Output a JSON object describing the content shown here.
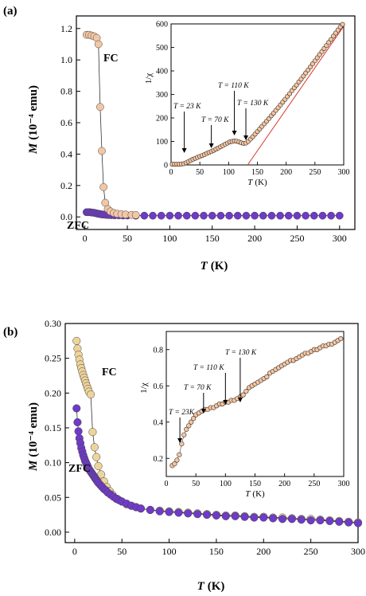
{
  "chart_data": [
    {
      "panel": "(a)",
      "type": "scatter",
      "xlabel_main": "T",
      "xlabel_unit": "(K)",
      "ylabel_main": "M",
      "ylabel_unit": "(10⁻⁴ emu)",
      "xlim": [
        -10,
        318
      ],
      "ylim": [
        -0.08,
        1.28
      ],
      "xticks": [
        0,
        50,
        100,
        150,
        200,
        250,
        300
      ],
      "yticks": [
        0.0,
        0.2,
        0.4,
        0.6,
        0.8,
        1.0,
        1.2
      ],
      "ytick_labels": [
        "0.0",
        "0.2",
        "0.4",
        "0.6",
        "0.8",
        "1.0",
        "1.2"
      ],
      "annotations": [
        "FC",
        "ZFC"
      ],
      "series": [
        {
          "name": "FC",
          "color": "#f2c7a5",
          "x": [
            2,
            5,
            8,
            11,
            14,
            16,
            18,
            20,
            22,
            24,
            27,
            30,
            34,
            38,
            43,
            48,
            55,
            60
          ],
          "y": [
            1.16,
            1.16,
            1.155,
            1.15,
            1.14,
            1.1,
            0.7,
            0.42,
            0.19,
            0.09,
            0.05,
            0.035,
            0.025,
            0.02,
            0.017,
            0.015,
            0.013,
            0.012
          ]
        },
        {
          "name": "ZFC",
          "color": "#6f3ac8",
          "x": [
            2,
            4,
            6,
            8,
            10,
            12,
            14,
            16,
            18,
            20,
            22,
            25,
            28,
            31,
            35,
            40,
            45,
            50,
            60,
            70,
            80,
            90,
            100,
            110,
            120,
            130,
            140,
            150,
            160,
            170,
            180,
            190,
            200,
            210,
            220,
            230,
            240,
            250,
            260,
            270,
            280,
            290,
            300
          ],
          "y": [
            0.03,
            0.03,
            0.03,
            0.028,
            0.027,
            0.025,
            0.022,
            0.02,
            0.018,
            0.016,
            0.015,
            0.013,
            0.012,
            0.011,
            0.01,
            0.01,
            0.009,
            0.009,
            0.008,
            0.008,
            0.008,
            0.008,
            0.008,
            0.008,
            0.008,
            0.008,
            0.008,
            0.008,
            0.008,
            0.008,
            0.008,
            0.008,
            0.008,
            0.008,
            0.008,
            0.008,
            0.008,
            0.008,
            0.008,
            0.008,
            0.008,
            0.008,
            0.008
          ]
        }
      ],
      "inset": {
        "ylabel": "1/χ",
        "xlabel_main": "T",
        "xlabel_unit": "(K)",
        "xlim": [
          0,
          300
        ],
        "ylim": [
          0,
          600
        ],
        "xticks": [
          0,
          50,
          100,
          150,
          200,
          250,
          300
        ],
        "yticks": [
          0,
          100,
          200,
          300,
          400,
          500,
          600
        ],
        "annotations": [
          {
            "label": "T = 23 K",
            "x": 23
          },
          {
            "label": "T = 70 K",
            "x": 70
          },
          {
            "label": "T = 110 K",
            "x": 110
          },
          {
            "label": "T = 130 K",
            "x": 130
          }
        ],
        "fit_line": {
          "color": "#d9362a",
          "x": [
            133,
            300
          ],
          "y": [
            0,
            590
          ]
        },
        "series": [
          {
            "name": "1/χ",
            "color": "#f2c7a5",
            "x": [
              2,
              6,
              10,
              14,
              18,
              22,
              26,
              30,
              34,
              38,
              42,
              46,
              50,
              54,
              58,
              62,
              66,
              70,
              74,
              78,
              82,
              86,
              90,
              94,
              98,
              102,
              106,
              110,
              114,
              118,
              122,
              126,
              130,
              134,
              138,
              142,
              146,
              150,
              154,
              158,
              162,
              166,
              170,
              174,
              178,
              182,
              186,
              190,
              194,
              198,
              202,
              206,
              210,
              214,
              218,
              222,
              226,
              230,
              234,
              238,
              242,
              246,
              250,
              254,
              258,
              262,
              266,
              270,
              274,
              278,
              282,
              286,
              290,
              294,
              298
            ],
            "y": [
              3,
              3,
              3,
              3,
              4,
              5,
              9,
              14,
              19,
              24,
              28,
              32,
              36,
              40,
              44,
              49,
              53,
              57,
              62,
              67,
              72,
              77,
              82,
              88,
              93,
              98,
              100,
              102,
              101,
              98,
              94,
              92,
              93,
              100,
              110,
              120,
              131,
              142,
              153,
              164,
              175,
              186,
              197,
              209,
              220,
              232,
              243,
              255,
              267,
              279,
              291,
              303,
              316,
              328,
              340,
              353,
              365,
              378,
              391,
              404,
              417,
              430,
              443,
              456,
              469,
              482,
              495,
              508,
              521,
              534,
              548,
              561,
              574,
              587,
              598
            ]
          }
        ]
      }
    },
    {
      "panel": "(b)",
      "type": "scatter",
      "xlabel_main": "T",
      "xlabel_unit": "(K)",
      "ylabel_main": "M",
      "ylabel_unit": "(10⁻⁴ emu)",
      "xlim": [
        -10,
        300
      ],
      "ylim": [
        -0.015,
        0.3
      ],
      "xticks": [
        0,
        50,
        100,
        150,
        200,
        250,
        300
      ],
      "yticks": [
        0.0,
        0.05,
        0.1,
        0.15,
        0.2,
        0.25,
        0.3
      ],
      "ytick_labels": [
        "0.00",
        "0.05",
        "0.10",
        "0.15",
        "0.20",
        "0.25",
        "0.30"
      ],
      "annotations": [
        "FC",
        "ZFC"
      ],
      "series": [
        {
          "name": "FC",
          "color": "#efd49a",
          "x": [
            2,
            3,
            4,
            5,
            6,
            7,
            8,
            9,
            10,
            11,
            12,
            13,
            14,
            15,
            17,
            19,
            21,
            23,
            25,
            28,
            31,
            34,
            37,
            40,
            45,
            50,
            55,
            60,
            65,
            70,
            80,
            90,
            100,
            110,
            120,
            130,
            140,
            150,
            160,
            170,
            180,
            190,
            200,
            210,
            220,
            230,
            240,
            250,
            260,
            270,
            280,
            290,
            300
          ],
          "y": [
            0.275,
            0.264,
            0.255,
            0.248,
            0.241,
            0.236,
            0.231,
            0.226,
            0.222,
            0.218,
            0.214,
            0.21,
            0.206,
            0.202,
            0.198,
            0.144,
            0.122,
            0.108,
            0.095,
            0.083,
            0.073,
            0.065,
            0.059,
            0.054,
            0.048,
            0.044,
            0.04,
            0.038,
            0.036,
            0.034,
            0.032,
            0.031,
            0.03,
            0.029,
            0.028,
            0.027,
            0.026,
            0.025,
            0.024,
            0.024,
            0.023,
            0.022,
            0.022,
            0.021,
            0.021,
            0.02,
            0.019,
            0.019,
            0.018,
            0.017,
            0.016,
            0.015,
            0.014
          ]
        },
        {
          "name": "ZFC",
          "color": "#6f3ac8",
          "x": [
            2,
            3,
            4,
            5,
            6,
            7,
            8,
            9,
            10,
            11,
            12,
            13,
            14,
            15,
            16,
            17,
            18,
            19,
            20,
            21,
            22,
            23,
            24,
            25,
            27,
            29,
            31,
            33,
            35,
            38,
            41,
            44,
            47,
            50,
            55,
            60,
            65,
            70,
            80,
            90,
            100,
            110,
            120,
            130,
            140,
            150,
            160,
            170,
            180,
            190,
            200,
            210,
            220,
            230,
            240,
            250,
            260,
            270,
            280,
            290,
            300
          ],
          "y": [
            0.178,
            0.158,
            0.145,
            0.135,
            0.128,
            0.121,
            0.116,
            0.111,
            0.107,
            0.103,
            0.1,
            0.097,
            0.094,
            0.091,
            0.089,
            0.087,
            0.085,
            0.083,
            0.081,
            0.079,
            0.077,
            0.075,
            0.073,
            0.071,
            0.068,
            0.065,
            0.062,
            0.06,
            0.057,
            0.054,
            0.051,
            0.048,
            0.046,
            0.044,
            0.041,
            0.038,
            0.036,
            0.034,
            0.032,
            0.03,
            0.029,
            0.028,
            0.027,
            0.026,
            0.025,
            0.024,
            0.023,
            0.023,
            0.022,
            0.021,
            0.021,
            0.02,
            0.019,
            0.019,
            0.018,
            0.017,
            0.017,
            0.016,
            0.015,
            0.014,
            0.013
          ]
        }
      ],
      "inset": {
        "ylabel": "1/χ",
        "xlabel_main": "T",
        "xlabel_unit": "(K)",
        "xlim": [
          0,
          300
        ],
        "ylim": [
          0.1,
          0.9
        ],
        "xticks": [
          0,
          50,
          100,
          150,
          200,
          250,
          300
        ],
        "yticks": [
          0.2,
          0.4,
          0.6,
          0.8
        ],
        "ytick_labels": [
          "0.2",
          "0.4",
          "0.6",
          "0.8"
        ],
        "annotations": [
          {
            "label": "T = 23K",
            "x": 23
          },
          {
            "label": "T = 70 K",
            "x": 63
          },
          {
            "label": "T = 110 K",
            "x": 100
          },
          {
            "label": "T = 130 K",
            "x": 125
          }
        ],
        "series": [
          {
            "name": "1/χ",
            "color": "#f2c7a5",
            "x": [
              10,
              14,
              18,
              22,
              26,
              30,
              34,
              38,
              42,
              46,
              50,
              55,
              60,
              65,
              70,
              75,
              80,
              85,
              90,
              95,
              100,
              105,
              110,
              115,
              120,
              125,
              130,
              135,
              140,
              145,
              150,
              155,
              160,
              165,
              170,
              175,
              180,
              185,
              190,
              195,
              200,
              205,
              210,
              215,
              220,
              225,
              230,
              235,
              240,
              245,
              250,
              255,
              260,
              265,
              270,
              275,
              280,
              285,
              290,
              295
            ],
            "y": [
              0.16,
              0.17,
              0.19,
              0.22,
              0.28,
              0.33,
              0.36,
              0.38,
              0.4,
              0.42,
              0.44,
              0.45,
              0.46,
              0.47,
              0.47,
              0.48,
              0.48,
              0.49,
              0.5,
              0.5,
              0.51,
              0.51,
              0.52,
              0.52,
              0.53,
              0.54,
              0.55,
              0.57,
              0.59,
              0.6,
              0.61,
              0.62,
              0.63,
              0.64,
              0.65,
              0.67,
              0.68,
              0.69,
              0.7,
              0.71,
              0.72,
              0.73,
              0.74,
              0.74,
              0.75,
              0.76,
              0.77,
              0.78,
              0.78,
              0.79,
              0.8,
              0.8,
              0.81,
              0.82,
              0.82,
              0.83,
              0.83,
              0.84,
              0.85,
              0.86
            ]
          }
        ]
      }
    }
  ]
}
